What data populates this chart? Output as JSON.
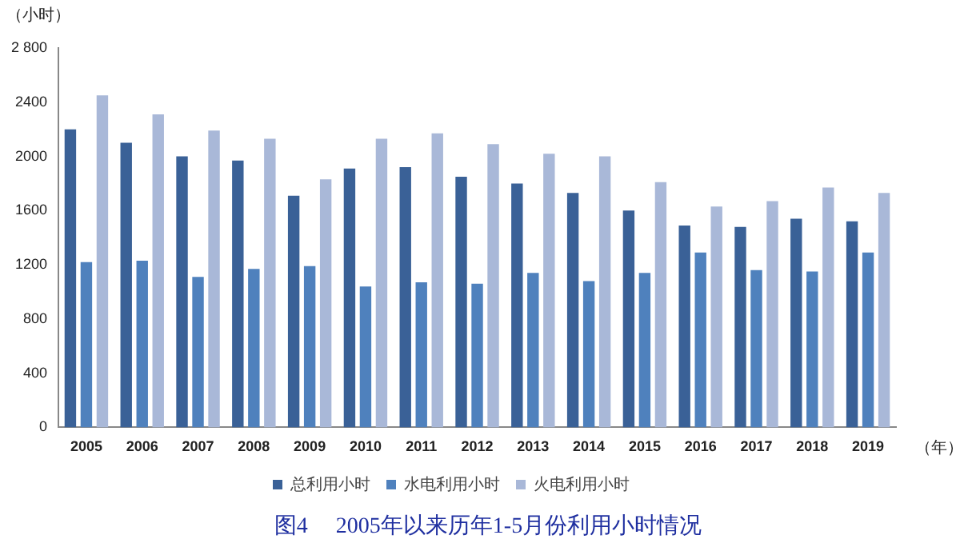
{
  "chart_data": {
    "type": "bar",
    "title": "图4　 2005年以来历年1-5月份利用小时情况",
    "ylabel": "（小时）",
    "xlabel": "（年）",
    "categories": [
      "2005",
      "2006",
      "2007",
      "2008",
      "2009",
      "2010",
      "2011",
      "2012",
      "2013",
      "2014",
      "2015",
      "2016",
      "2017",
      "2018",
      "2019"
    ],
    "series": [
      {
        "name": "总利用小时",
        "color": "#3a6197",
        "values": [
          2200,
          2100,
          2000,
          1970,
          1710,
          1910,
          1920,
          1850,
          1800,
          1730,
          1600,
          1490,
          1480,
          1540,
          1520
        ]
      },
      {
        "name": "水电利用小时",
        "color": "#4f81bd",
        "values": [
          1220,
          1230,
          1110,
          1170,
          1190,
          1040,
          1070,
          1060,
          1140,
          1080,
          1140,
          1290,
          1160,
          1150,
          1290
        ]
      },
      {
        "name": "火电利用小时",
        "color": "#a9b8d8",
        "values": [
          2450,
          2310,
          2190,
          2130,
          1830,
          2130,
          2170,
          2090,
          2020,
          2000,
          1810,
          1630,
          1670,
          1770,
          1730
        ]
      }
    ],
    "ylim": [
      0,
      2800
    ],
    "yticks": [
      0,
      400,
      800,
      1200,
      1600,
      2000,
      2400,
      {
        "value": 2800,
        "label": "2 800"
      }
    ],
    "grid": false,
    "legend": "bottom"
  }
}
